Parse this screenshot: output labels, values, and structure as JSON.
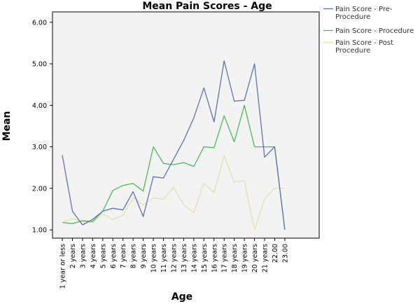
{
  "chart_data": {
    "type": "line",
    "title": "Mean Pain Scores - Age",
    "xlabel": "Age",
    "ylabel": "Mean",
    "ylim": [
      0.8,
      6.25
    ],
    "yticks": [
      "1.00",
      "2.00",
      "3.00",
      "4.00",
      "5.00",
      "6.00"
    ],
    "grid": false,
    "legend_position": "top-right",
    "categories": [
      "1 year or less",
      "2 years",
      "3 years",
      "4 years",
      "5 years",
      "6 years",
      "7 years",
      "8 years",
      "9 years",
      "10 years",
      "11 years",
      "12 years",
      "13 years",
      "14 years",
      "15 years",
      "16 years",
      "17 years",
      "18 years",
      "19 years",
      "20 years",
      "21 years",
      "22.00",
      "23.00"
    ],
    "series": [
      {
        "name": "Pain Score - Pre-Procedure",
        "legend_lines": [
          "Pain Score - Pre-",
          "Procedure"
        ],
        "color": "#5b73b0",
        "values": [
          2.8,
          1.45,
          1.12,
          1.25,
          1.45,
          1.52,
          1.48,
          1.92,
          1.32,
          2.28,
          2.25,
          2.7,
          3.15,
          3.7,
          4.42,
          3.6,
          5.07,
          4.1,
          4.12,
          5.0,
          2.75,
          3.0,
          1.0
        ]
      },
      {
        "name": "Pain Score - Procedure",
        "legend_lines": [
          "Pain Score - Procedure"
        ],
        "color": "#4cbb57",
        "values": [
          1.18,
          1.15,
          1.22,
          1.2,
          1.45,
          1.95,
          2.07,
          2.12,
          1.93,
          3.0,
          2.6,
          2.57,
          2.62,
          2.53,
          3.0,
          2.98,
          3.75,
          3.12,
          4.0,
          3.0,
          3.0,
          3.0,
          1.0
        ]
      },
      {
        "name": "Pain Score - Post Procedure",
        "legend_lines": [
          "Pain Score - Post",
          "Procedure"
        ],
        "color": "#e2e0b0",
        "values": [
          1.18,
          1.27,
          1.2,
          1.18,
          1.38,
          1.25,
          1.35,
          1.78,
          1.6,
          1.77,
          1.74,
          2.03,
          1.6,
          1.42,
          2.12,
          1.9,
          2.78,
          2.15,
          2.18,
          1.0,
          1.75,
          2.0,
          2.0
        ]
      }
    ]
  }
}
